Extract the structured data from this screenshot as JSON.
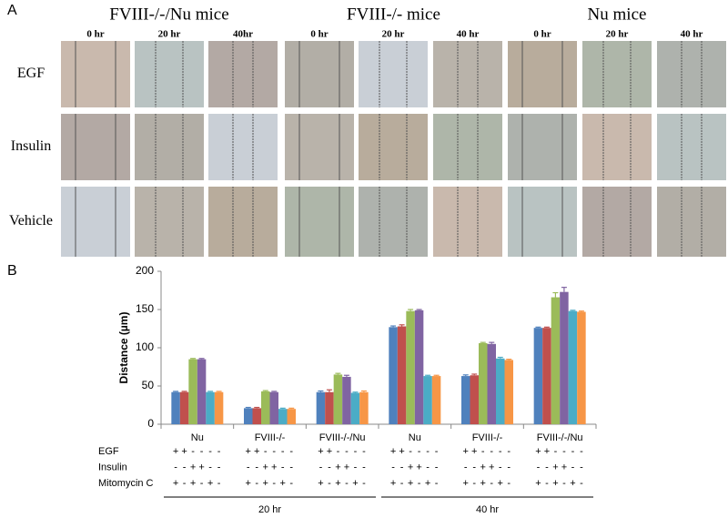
{
  "panel_a": {
    "label": "A",
    "column_groups": [
      "FVIII-/-/Nu mice",
      "FVIII-/- mice",
      "Nu mice"
    ],
    "times": [
      "0 hr",
      "20 hr",
      "40hr",
      "0 hr",
      "20 hr",
      "40 hr",
      "0 hr",
      "20 hr",
      "40 hr"
    ],
    "rows": [
      "EGF",
      "Insulin",
      "Vehicle"
    ]
  },
  "chart_data": {
    "type": "bar",
    "panel_label": "B",
    "y_label": "Distance (µm)",
    "categories": [
      "Nu",
      "FVIII-/-",
      "FVIII-/-/Nu",
      "Nu",
      "FVIII-/-",
      "FVIII-/-/Nu"
    ],
    "category_groups": [
      "20 hr",
      "40 hr"
    ],
    "ylim": [
      0,
      200
    ],
    "yticks": [
      0,
      50,
      100,
      150,
      200
    ],
    "series": [
      {
        "color": "#4f81bd",
        "values": [
          42,
          21,
          42,
          127,
          63,
          126
        ],
        "errors": [
          1,
          1,
          1.5,
          1.5,
          1.5,
          1
        ]
      },
      {
        "color": "#c0504d",
        "values": [
          42,
          21,
          42,
          128,
          64,
          126
        ],
        "errors": [
          1,
          1,
          3,
          2,
          1.5,
          1
        ]
      },
      {
        "color": "#9bbb59",
        "values": [
          85,
          43,
          65,
          148,
          106,
          166
        ],
        "errors": [
          1,
          1,
          1.5,
          2,
          1,
          6
        ]
      },
      {
        "color": "#8064a2",
        "values": [
          85,
          42,
          62,
          149,
          105,
          173
        ],
        "errors": [
          1,
          1,
          2,
          1,
          2,
          6
        ]
      },
      {
        "color": "#4bacc6",
        "values": [
          42,
          20,
          41,
          63,
          86,
          148
        ],
        "errors": [
          1,
          1,
          1,
          1,
          1.5,
          1
        ]
      },
      {
        "color": "#f79646",
        "values": [
          42,
          20,
          42,
          63,
          84,
          147
        ],
        "errors": [
          1,
          1,
          1.5,
          1,
          1,
          1
        ]
      }
    ],
    "treatments": [
      {
        "label": "EGF",
        "signs": [
          "+",
          "+",
          "-",
          "-",
          "-",
          "-"
        ]
      },
      {
        "label": "Insulin",
        "signs": [
          "-",
          "-",
          "+",
          "+",
          "-",
          "-"
        ]
      },
      {
        "label": "Mitomycin C",
        "signs": [
          "+",
          "-",
          "+",
          "-",
          "+",
          "-"
        ]
      }
    ]
  }
}
